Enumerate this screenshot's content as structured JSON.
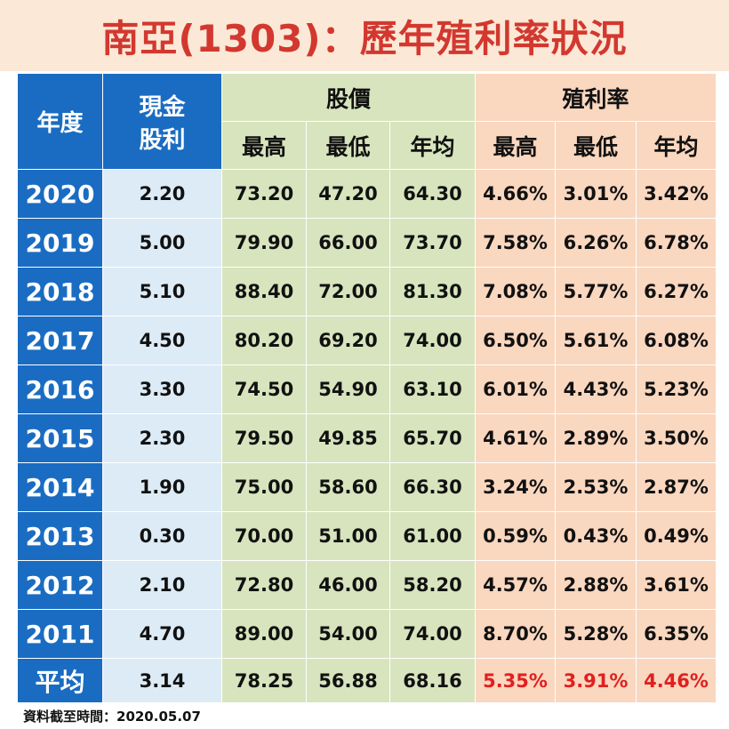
{
  "title": "南亞(1303)：歷年殖利率狀況",
  "headers": {
    "year": "年度",
    "cash_dividend_line1": "現金",
    "cash_dividend_line2": "股利",
    "price_group": "股價",
    "yield_group": "殖利率",
    "high": "最高",
    "low": "最低",
    "avg": "年均"
  },
  "rows": [
    {
      "year": "2020",
      "cash": "2.20",
      "price_high": "73.20",
      "price_low": "47.20",
      "price_avg": "64.30",
      "yield_high": "4.66%",
      "yield_low": "3.01%",
      "yield_avg": "3.42%"
    },
    {
      "year": "2019",
      "cash": "5.00",
      "price_high": "79.90",
      "price_low": "66.00",
      "price_avg": "73.70",
      "yield_high": "7.58%",
      "yield_low": "6.26%",
      "yield_avg": "6.78%"
    },
    {
      "year": "2018",
      "cash": "5.10",
      "price_high": "88.40",
      "price_low": "72.00",
      "price_avg": "81.30",
      "yield_high": "7.08%",
      "yield_low": "5.77%",
      "yield_avg": "6.27%"
    },
    {
      "year": "2017",
      "cash": "4.50",
      "price_high": "80.20",
      "price_low": "69.20",
      "price_avg": "74.00",
      "yield_high": "6.50%",
      "yield_low": "5.61%",
      "yield_avg": "6.08%"
    },
    {
      "year": "2016",
      "cash": "3.30",
      "price_high": "74.50",
      "price_low": "54.90",
      "price_avg": "63.10",
      "yield_high": "6.01%",
      "yield_low": "4.43%",
      "yield_avg": "5.23%"
    },
    {
      "year": "2015",
      "cash": "2.30",
      "price_high": "79.50",
      "price_low": "49.85",
      "price_avg": "65.70",
      "yield_high": "4.61%",
      "yield_low": "2.89%",
      "yield_avg": "3.50%"
    },
    {
      "year": "2014",
      "cash": "1.90",
      "price_high": "75.00",
      "price_low": "58.60",
      "price_avg": "66.30",
      "yield_high": "3.24%",
      "yield_low": "2.53%",
      "yield_avg": "2.87%"
    },
    {
      "year": "2013",
      "cash": "0.30",
      "price_high": "70.00",
      "price_low": "51.00",
      "price_avg": "61.00",
      "yield_high": "0.59%",
      "yield_low": "0.43%",
      "yield_avg": "0.49%"
    },
    {
      "year": "2012",
      "cash": "2.10",
      "price_high": "72.80",
      "price_low": "46.00",
      "price_avg": "58.20",
      "yield_high": "4.57%",
      "yield_low": "2.88%",
      "yield_avg": "3.61%"
    },
    {
      "year": "2011",
      "cash": "4.70",
      "price_high": "89.00",
      "price_low": "54.00",
      "price_avg": "74.00",
      "yield_high": "8.70%",
      "yield_low": "5.28%",
      "yield_avg": "6.35%"
    }
  ],
  "average": {
    "label": "平均",
    "cash": "3.14",
    "price_high": "78.25",
    "price_low": "56.88",
    "price_avg": "68.16",
    "yield_high": "5.35%",
    "yield_low": "3.91%",
    "yield_avg": "4.46%"
  },
  "footer": "資料截至時間：2020.05.07",
  "colors": {
    "title_text": "#d2382f",
    "title_bg": "#fbe8d6",
    "year_column": "#1a6cc2",
    "cash_column": "#dcebf6",
    "price_columns": "#d7e4bd",
    "yield_columns": "#fad7bf",
    "average_yield_text": "#e02020"
  }
}
